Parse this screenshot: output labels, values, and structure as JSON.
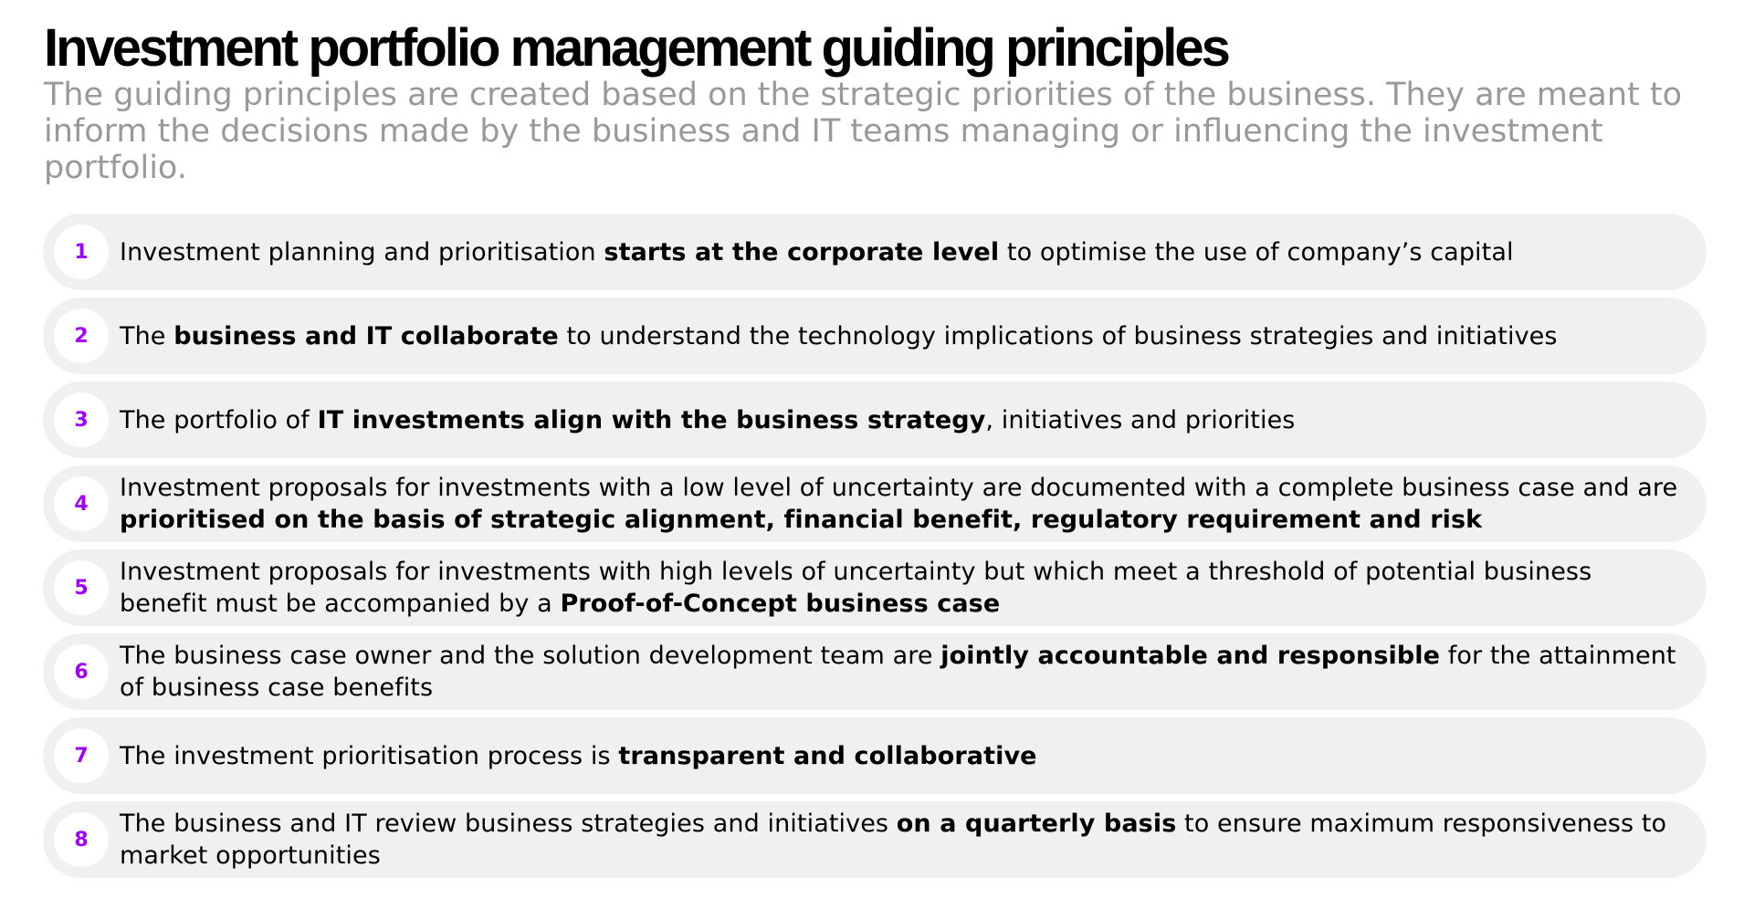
{
  "header": {
    "title": "Investment portfolio management guiding principles",
    "subtitle": "The guiding principles are created based on the strategic priorities of the business. They are meant to inform the decisions made by the business and IT teams managing or influencing the investment portfolio."
  },
  "colors": {
    "accent": "#a100ff",
    "row_background": "#f0f0f0",
    "subtitle_text": "#999999"
  },
  "principles": [
    {
      "number": "1",
      "text_before": "Investment planning and prioritisation ",
      "text_bold": "starts at the corporate level",
      "text_after": " to optimise the use of company’s capital"
    },
    {
      "number": "2",
      "text_before": "The ",
      "text_bold": "business and IT collaborate",
      "text_after": " to understand the technology implications of business strategies and initiatives"
    },
    {
      "number": "3",
      "text_before": "The portfolio of ",
      "text_bold": "IT investments align with the business strategy",
      "text_after": ", initiatives and priorities"
    },
    {
      "number": "4",
      "text_before": "Investment proposals for investments with a low level of uncertainty are documented with a complete business case and are ",
      "text_bold": "prioritised on the basis of strategic alignment, financial benefit, regulatory requirement and risk",
      "text_after": ""
    },
    {
      "number": "5",
      "text_before": "Investment proposals for investments with high levels of uncertainty but which meet a threshold of potential business benefit must be accompanied by a ",
      "text_bold": "Proof-of-Concept business case",
      "text_after": ""
    },
    {
      "number": "6",
      "text_before": "The business case owner and the solution development team are ",
      "text_bold": "jointly accountable and responsible",
      "text_after": " for the attainment of business case benefits"
    },
    {
      "number": "7",
      "text_before": "The investment prioritisation process is ",
      "text_bold": "transparent and collaborative",
      "text_after": ""
    },
    {
      "number": "8",
      "text_before": "The business and IT review business strategies and initiatives ",
      "text_bold": "on a quarterly basis",
      "text_after": " to ensure maximum responsiveness to market opportunities"
    }
  ]
}
